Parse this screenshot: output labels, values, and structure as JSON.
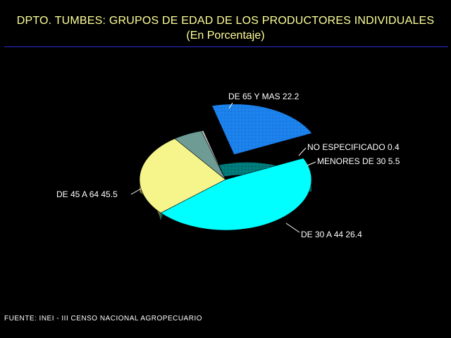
{
  "header": {
    "title": "DPTO. TUMBES: GRUPOS DE EDAD DE LOS PRODUCTORES INDIVIDUALES",
    "subtitle": "(En Porcentaje)"
  },
  "footer": {
    "source": "FUENTE: INEI - III CENSO NACIONAL AGROPECUARIO"
  },
  "chart_data": {
    "type": "pie",
    "title": "DPTO. TUMBES: GRUPOS DE EDAD DE LOS PRODUCTORES INDIVIDUALES",
    "subtitle": "(En Porcentaje)",
    "exploded": "DE 65 Y MAS",
    "slices": [
      {
        "label": "DE 65 Y MAS",
        "value": 22.2,
        "color": "#1e8cff"
      },
      {
        "label": "NO ESPECIFICADO",
        "value": 0.4,
        "color": "#c8c8c8"
      },
      {
        "label": "MENORES DE 30",
        "value": 5.5,
        "color": "#6e9c94"
      },
      {
        "label": "DE 30 A 44",
        "value": 26.4,
        "color": "#f5f58c"
      },
      {
        "label": "DE 45 A 64",
        "value": 45.5,
        "color": "#00ffff"
      }
    ]
  }
}
